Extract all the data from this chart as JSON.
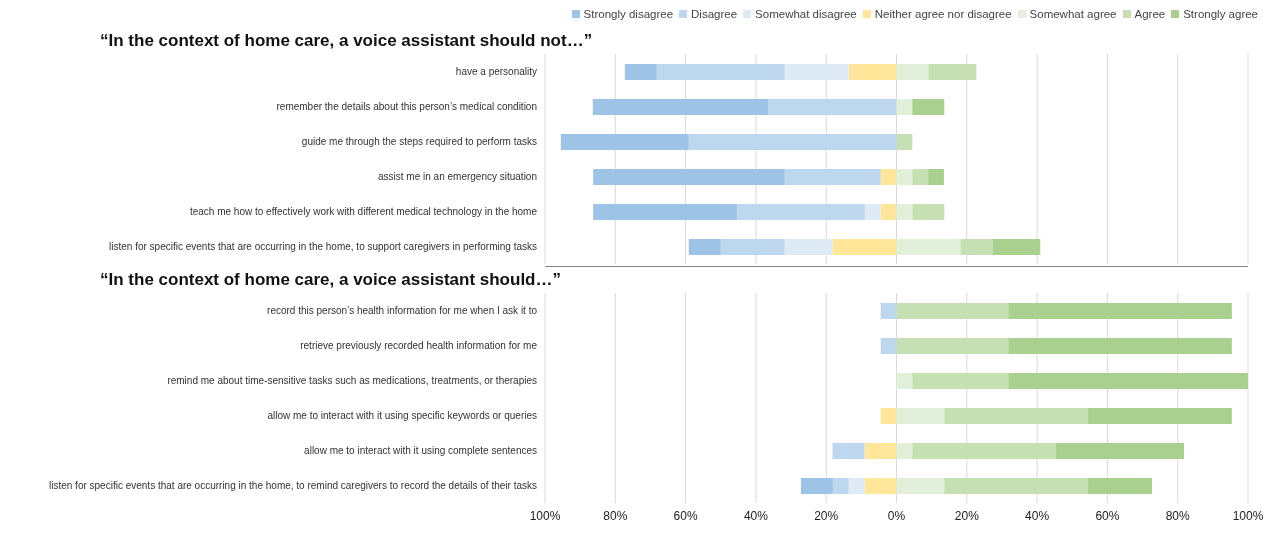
{
  "chart_data": [
    {
      "type": "bar",
      "orientation": "horizontal",
      "stacked": true,
      "title": "“In the context of home care, a voice assistant should not…”",
      "categories": [
        "have a personality",
        "remember the details about this person’s medical condition",
        "guide me through the steps required to perform tasks",
        "assist me in an emergency situation",
        "teach me how to effectively work with different medical technology in the home",
        "listen for specific events that are occurring in the home, to support caregivers in performing tasks"
      ],
      "series": [
        {
          "name": "Strongly disagree",
          "color": "#9dc3e6",
          "values": [
            -9.1,
            -50,
            -36.4,
            -54.5,
            -40.9,
            -9.1
          ]
        },
        {
          "name": "Disagree",
          "color": "#bdd7ee",
          "values": [
            -36.4,
            -36.4,
            -59.1,
            -27.3,
            -36.4,
            -18.2
          ]
        },
        {
          "name": "Somewhat disagree",
          "color": "#deebf7",
          "values": [
            -18.2,
            0,
            0,
            0,
            -4.5,
            -13.6
          ]
        },
        {
          "name": "Neither agree nor disagree",
          "color": "#ffe699",
          "values": [
            -13.6,
            0,
            0,
            -4.5,
            -4.5,
            -18.2
          ]
        },
        {
          "name": "Somewhat agree",
          "color": "#e2efda",
          "values": [
            9.1,
            4.5,
            0,
            4.5,
            4.5,
            18.2
          ]
        },
        {
          "name": "Agree",
          "color": "#c6e0b4",
          "values": [
            13.6,
            0,
            4.5,
            4.5,
            9.1,
            9.1
          ]
        },
        {
          "name": "Strongly agree",
          "color": "#a9d08e",
          "values": [
            0,
            9.1,
            0,
            4.5,
            0,
            13.6
          ]
        }
      ],
      "xlim": [
        -100,
        100
      ],
      "xticks": [
        {
          "value": -100,
          "label": null
        },
        {
          "value": -80,
          "label": null
        },
        {
          "value": -60,
          "label": null
        },
        {
          "value": -40,
          "label": null
        },
        {
          "value": -20,
          "label": null
        },
        {
          "value": 0,
          "label": null
        },
        {
          "value": 20,
          "label": null
        },
        {
          "value": 40,
          "label": null
        },
        {
          "value": 60,
          "label": null
        },
        {
          "value": 80,
          "label": null
        },
        {
          "value": 100,
          "label": null
        }
      ],
      "grid": "x",
      "legend": "top right",
      "tick_labels": "y"
    },
    {
      "type": "bar",
      "orientation": "horizontal",
      "stacked": true,
      "title": "“In the context of home care, a voice assistant should…”",
      "categories": [
        "record this person’s health information for me when I ask it to",
        "retrieve previously recorded health information for me",
        "remind me about time-sensitive tasks such as medications, treatments, or therapies",
        "allow me to interact with it using specific keywords or queries",
        "allow me to interact with it using complete sentences",
        "listen for specific events that are occurring in the home, to remind caregivers to record the details of their tasks"
      ],
      "series": [
        {
          "color": "#9dc3e6",
          "values": [
            0,
            0,
            0,
            0,
            0,
            -9.1
          ]
        },
        {
          "color": "#bdd7ee",
          "values": [
            -4.5,
            -4.5,
            0,
            0,
            -9.1,
            -4.5
          ]
        },
        {
          "color": "#deebf7",
          "values": [
            0,
            0,
            0,
            0,
            0,
            -4.5
          ]
        },
        {
          "color": "#ffe699",
          "values": [
            0,
            0,
            0,
            -4.5,
            -9.1,
            -9.1
          ]
        },
        {
          "color": "#e2efda",
          "values": [
            0,
            0,
            4.5,
            13.6,
            4.5,
            13.6
          ]
        },
        {
          "color": "#c6e0b4",
          "values": [
            31.8,
            31.8,
            27.3,
            40.9,
            40.9,
            40.9
          ]
        },
        {
          "color": "#a9d08e",
          "values": [
            63.6,
            63.6,
            68.2,
            40.9,
            36.4,
            18.2
          ]
        }
      ],
      "xlim": [
        -100,
        100
      ],
      "xticks": [
        {
          "value": -100,
          "label": "100%"
        },
        {
          "value": -80,
          "label": "80%"
        },
        {
          "value": -60,
          "label": "60%"
        },
        {
          "value": -40,
          "label": "40%"
        },
        {
          "value": -20,
          "label": "20%"
        },
        {
          "value": 0,
          "label": "0%"
        },
        {
          "value": 20,
          "label": "20%"
        },
        {
          "value": 40,
          "label": "40%"
        },
        {
          "value": 60,
          "label": "60%"
        },
        {
          "value": 80,
          "label": "80%"
        },
        {
          "value": 100,
          "label": "100%"
        }
      ],
      "grid": "x"
    }
  ]
}
